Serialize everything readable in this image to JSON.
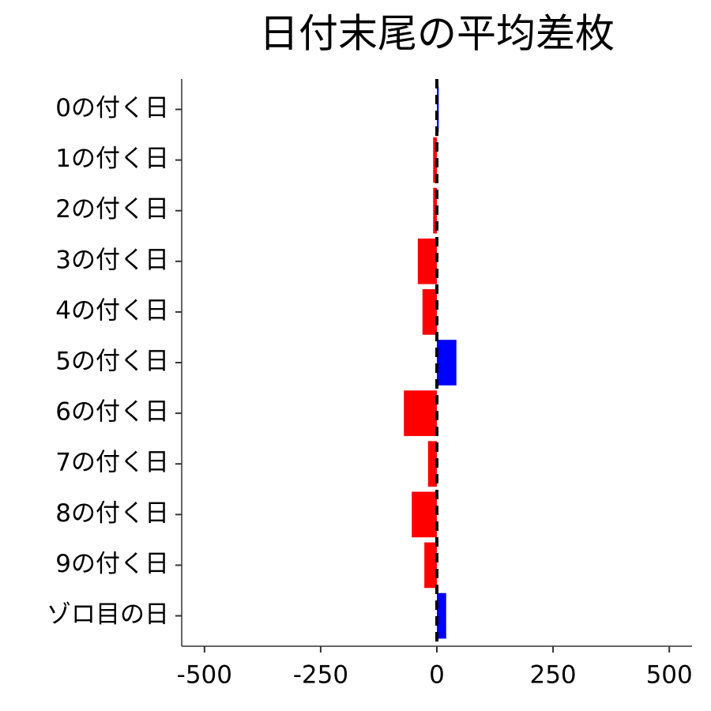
{
  "chart_data": {
    "type": "barh",
    "title": "日付末尾の平均差枚",
    "categories": [
      "0の付く日",
      "1の付く日",
      "2の付く日",
      "3の付く日",
      "4の付く日",
      "5の付く日",
      "6の付く日",
      "7の付く日",
      "8の付く日",
      "9の付く日",
      "ゾロ目の日"
    ],
    "values": [
      4,
      -8,
      -8,
      -41,
      -31,
      42,
      -71,
      -19,
      -54,
      -27,
      20
    ],
    "positive_color": "#0000ff",
    "negative_color": "#ff0000",
    "reference_line": 0,
    "xlim": [
      -549,
      549
    ],
    "xticks": [
      -500,
      -250,
      0,
      250,
      500
    ]
  }
}
